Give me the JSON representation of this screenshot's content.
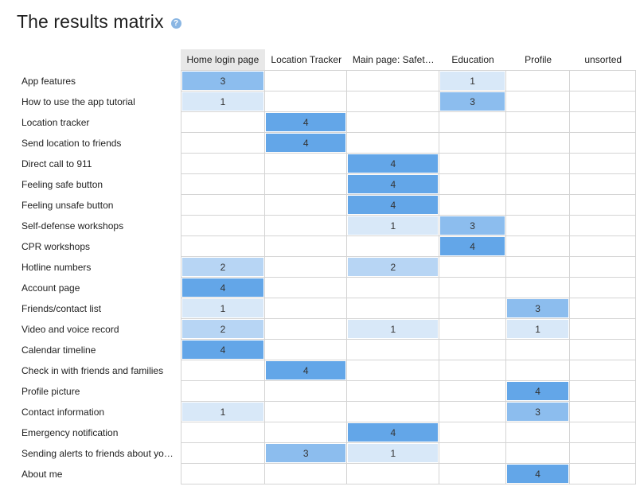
{
  "header": {
    "title": "The results matrix",
    "help_glyph": "?"
  },
  "colors": {
    "level_1": "#d8e8f8",
    "level_2": "#b7d5f4",
    "level_3": "#8cbdee",
    "level_4": "#63a6e8",
    "active_header": "#e8e8e8"
  },
  "columns": [
    "Home login page",
    "Location Tracker",
    "Main page: Safet…",
    "Education",
    "Profile",
    "unsorted"
  ],
  "rows": [
    {
      "label": "App features",
      "values": [
        "3",
        "",
        "",
        "1",
        "",
        ""
      ]
    },
    {
      "label": "How to use the app tutorial",
      "values": [
        "1",
        "",
        "",
        "3",
        "",
        ""
      ]
    },
    {
      "label": "Location tracker",
      "values": [
        "",
        "4",
        "",
        "",
        "",
        ""
      ]
    },
    {
      "label": "Send location to friends",
      "values": [
        "",
        "4",
        "",
        "",
        "",
        ""
      ]
    },
    {
      "label": "Direct call to 911",
      "values": [
        "",
        "",
        "4",
        "",
        "",
        ""
      ]
    },
    {
      "label": "Feeling safe button",
      "values": [
        "",
        "",
        "4",
        "",
        "",
        ""
      ]
    },
    {
      "label": "Feeling unsafe button",
      "values": [
        "",
        "",
        "4",
        "",
        "",
        ""
      ]
    },
    {
      "label": "Self-defense workshops",
      "values": [
        "",
        "",
        "1",
        "3",
        "",
        ""
      ]
    },
    {
      "label": "CPR workshops",
      "values": [
        "",
        "",
        "",
        "4",
        "",
        ""
      ]
    },
    {
      "label": "Hotline numbers",
      "values": [
        "2",
        "",
        "2",
        "",
        "",
        ""
      ]
    },
    {
      "label": "Account page",
      "values": [
        "4",
        "",
        "",
        "",
        "",
        ""
      ]
    },
    {
      "label": "Friends/contact list",
      "values": [
        "1",
        "",
        "",
        "",
        "3",
        ""
      ]
    },
    {
      "label": "Video and voice record",
      "values": [
        "2",
        "",
        "1",
        "",
        "1",
        ""
      ]
    },
    {
      "label": "Calendar timeline",
      "values": [
        "4",
        "",
        "",
        "",
        "",
        ""
      ]
    },
    {
      "label": "Check in with friends and families",
      "values": [
        "",
        "4",
        "",
        "",
        "",
        ""
      ]
    },
    {
      "label": "Profile picture",
      "values": [
        "",
        "",
        "",
        "",
        "4",
        ""
      ]
    },
    {
      "label": "Contact information",
      "values": [
        "1",
        "",
        "",
        "",
        "3",
        ""
      ]
    },
    {
      "label": "Emergency notification",
      "values": [
        "",
        "",
        "4",
        "",
        "",
        ""
      ]
    },
    {
      "label": "Sending alerts to friends about yo…",
      "values": [
        "",
        "3",
        "1",
        "",
        "",
        ""
      ]
    },
    {
      "label": "About me",
      "values": [
        "",
        "",
        "",
        "",
        "4",
        ""
      ]
    }
  ]
}
